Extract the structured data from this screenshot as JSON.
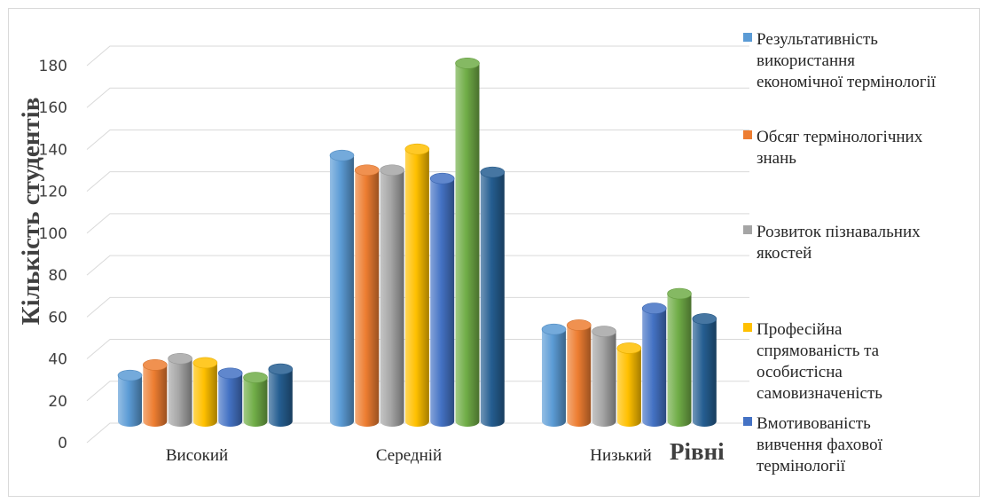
{
  "chart_data": {
    "type": "bar",
    "xlabel": "Рівні",
    "ylabel": "Кількість студентів",
    "ylim": [
      0,
      180
    ],
    "yticks": [
      0,
      20,
      40,
      60,
      80,
      100,
      120,
      140,
      160,
      180
    ],
    "grid": true,
    "legend_position": "right",
    "categories": [
      "Високий",
      "Середній",
      "Низький"
    ],
    "series": [
      {
        "name": "Результативність використання економічної термінології",
        "values": [
          27,
          132,
          49
        ],
        "color": "#5b9bd5"
      },
      {
        "name": "Обсяг термінологічних знань",
        "values": [
          32,
          125,
          51
        ],
        "color": "#ed7d31"
      },
      {
        "name": "Розвиток пізнавальних якостей",
        "values": [
          35,
          125,
          48
        ],
        "color": "#a5a5a5"
      },
      {
        "name": "Професійна спрямованість та особистісна самовизначеність",
        "values": [
          33,
          135,
          40
        ],
        "color": "#ffc000"
      },
      {
        "name": "Вмотивованість вивчення фахової термінології",
        "values": [
          28,
          121,
          59
        ],
        "color": "#4472c4"
      },
      {
        "name": "",
        "values": [
          26,
          176,
          66
        ],
        "color": "#70ad47"
      },
      {
        "name": "",
        "values": [
          30,
          124,
          54
        ],
        "color": "#255e91"
      }
    ]
  }
}
